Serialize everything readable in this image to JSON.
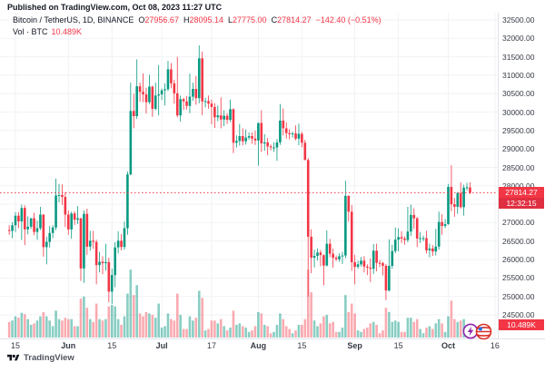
{
  "page": {
    "published": "Published on TradingView.com, Oct 08, 2023 11:27 UTC",
    "brand": "TradingView"
  },
  "legend": {
    "symbol": "Bitcoin / TetherUS, 1D, BINANCE",
    "o_label": "O",
    "o": "27956.67",
    "h_label": "H",
    "h": "28095.14",
    "l_label": "L",
    "l": "27775.00",
    "c_label": "C",
    "c": "27814.27",
    "change": "−142.40 (−0.51%)",
    "volume_label": "Vol · BTC",
    "volume_value": "10.489K"
  },
  "price_axis": {
    "labels": [
      "32500.00",
      "32000.00",
      "31500.00",
      "31000.00",
      "30500.00",
      "30000.00",
      "29500.00",
      "29000.00",
      "28500.00",
      "28000.00",
      "27500.00",
      "27000.00",
      "26500.00",
      "26000.00",
      "25500.00",
      "25000.00",
      "24500.00"
    ],
    "badge_price": "27814.27",
    "badge_countdown": "12:32:15",
    "badge_volume": "10.489K"
  },
  "time_axis": {
    "ticks": [
      {
        "label": "15",
        "i": 2,
        "major": false
      },
      {
        "label": "Jun",
        "i": 19,
        "major": true
      },
      {
        "label": "15",
        "i": 33,
        "major": false
      },
      {
        "label": "Jul",
        "i": 49,
        "major": true
      },
      {
        "label": "17",
        "i": 65,
        "major": false
      },
      {
        "label": "Aug",
        "i": 80,
        "major": true
      },
      {
        "label": "15",
        "i": 94,
        "major": false
      },
      {
        "label": "Sep",
        "i": 111,
        "major": true
      },
      {
        "label": "15",
        "i": 125,
        "major": false
      },
      {
        "label": "Oct",
        "i": 141,
        "major": true
      },
      {
        "label": "16",
        "i": 156,
        "major": false
      }
    ]
  },
  "stickers": [
    "lightning-sticker",
    "striped-ball-sticker"
  ],
  "colors": {
    "up": "#089981",
    "down": "#F23645",
    "vol_up": "rgba(8,153,129,0.48)",
    "vol_down": "rgba(242,54,69,0.42)",
    "accent_red": "#F23645",
    "grid": "#f0f2f6",
    "axis_text": "#363a45"
  },
  "chart_data": {
    "type": "candlestick",
    "title": "Bitcoin / TetherUS, 1D, BINANCE",
    "start_date": "2023-05-13",
    "end_date": "2023-10-08",
    "y_axis": {
      "min": 24500,
      "max": 32500,
      "step": 500,
      "grid": true
    },
    "last_price": 27814.27,
    "last_volume_k": 10.489,
    "volume_unit": "K BTC",
    "candles_ohlcv": [
      [
        26800,
        26930,
        26670,
        26777,
        22
      ],
      [
        26777,
        27010,
        26580,
        26930,
        24
      ],
      [
        26930,
        27290,
        26750,
        27190,
        30
      ],
      [
        27190,
        27290,
        26850,
        27035,
        28
      ],
      [
        27035,
        27490,
        26530,
        27400,
        35
      ],
      [
        27400,
        27470,
        26390,
        26820,
        33
      ],
      [
        26820,
        27170,
        26680,
        26890,
        26
      ],
      [
        26890,
        27130,
        26830,
        27120,
        18
      ],
      [
        27120,
        27270,
        26660,
        26750,
        20
      ],
      [
        26750,
        27060,
        26540,
        26850,
        24
      ],
      [
        26850,
        27430,
        26800,
        27220,
        30
      ],
      [
        27220,
        27230,
        26080,
        26340,
        36
      ],
      [
        26340,
        26620,
        25870,
        26480,
        30
      ],
      [
        26480,
        26910,
        26330,
        26720,
        24
      ],
      [
        26720,
        26930,
        26580,
        26870,
        16
      ],
      [
        26870,
        28200,
        26800,
        27740,
        38
      ],
      [
        27740,
        28050,
        27550,
        27750,
        26
      ],
      [
        27750,
        28040,
        27480,
        27700,
        24
      ],
      [
        27700,
        27830,
        26880,
        27220,
        28
      ],
      [
        27220,
        27330,
        26670,
        26820,
        26
      ],
      [
        26820,
        27300,
        26560,
        27250,
        26
      ],
      [
        27250,
        27310,
        26940,
        27080,
        16
      ],
      [
        27080,
        27450,
        26970,
        27120,
        16
      ],
      [
        27120,
        27130,
        25420,
        25760,
        55
      ],
      [
        25760,
        27330,
        25370,
        27240,
        58
      ],
      [
        27240,
        27380,
        26130,
        26350,
        42
      ],
      [
        26350,
        26780,
        26240,
        26510,
        26
      ],
      [
        26510,
        26780,
        26290,
        26480,
        22
      ],
      [
        26480,
        26540,
        25330,
        25850,
        48
      ],
      [
        25850,
        26210,
        25650,
        25940,
        26
      ],
      [
        25940,
        26090,
        25600,
        25900,
        24
      ],
      [
        25900,
        26430,
        25700,
        25930,
        26
      ],
      [
        25930,
        26050,
        24840,
        25130,
        44
      ],
      [
        25130,
        25750,
        24800,
        25580,
        46
      ],
      [
        25580,
        26470,
        25250,
        26330,
        44
      ],
      [
        26330,
        26770,
        26170,
        26510,
        26
      ],
      [
        26510,
        26690,
        26250,
        26340,
        18
      ],
      [
        26340,
        27030,
        26270,
        26850,
        30
      ],
      [
        26850,
        28390,
        26670,
        28310,
        62
      ],
      [
        28310,
        30800,
        28280,
        30030,
        96
      ],
      [
        30030,
        30500,
        29560,
        29890,
        60
      ],
      [
        29890,
        31430,
        29820,
        30700,
        74
      ],
      [
        30700,
        30800,
        30280,
        30550,
        34
      ],
      [
        30550,
        31050,
        30270,
        30480,
        30
      ],
      [
        30480,
        30660,
        29960,
        30270,
        36
      ],
      [
        30270,
        31010,
        30220,
        30690,
        34
      ],
      [
        30690,
        30720,
        29870,
        30090,
        32
      ],
      [
        30090,
        30800,
        30050,
        30450,
        28
      ],
      [
        30450,
        31280,
        29910,
        30480,
        48
      ],
      [
        30480,
        30640,
        30330,
        30590,
        14
      ],
      [
        30590,
        30780,
        30180,
        30620,
        16
      ],
      [
        30620,
        31390,
        30570,
        31160,
        34
      ],
      [
        31160,
        31330,
        30650,
        30780,
        26
      ],
      [
        30780,
        30880,
        30230,
        30510,
        24
      ],
      [
        30510,
        31500,
        29860,
        29910,
        62
      ],
      [
        29910,
        30450,
        29740,
        30350,
        32
      ],
      [
        30350,
        30390,
        30060,
        30290,
        12
      ],
      [
        30290,
        30440,
        30070,
        30170,
        12
      ],
      [
        30170,
        31040,
        29970,
        30420,
        30
      ],
      [
        30420,
        30800,
        30310,
        30630,
        24
      ],
      [
        30630,
        30980,
        30200,
        30380,
        28
      ],
      [
        30380,
        31810,
        30240,
        31460,
        66
      ],
      [
        31460,
        31640,
        29920,
        30290,
        56
      ],
      [
        30290,
        30390,
        30130,
        30300,
        10
      ],
      [
        30300,
        30450,
        30090,
        30230,
        12
      ],
      [
        30230,
        30340,
        29670,
        30140,
        24
      ],
      [
        30140,
        30240,
        29570,
        29860,
        24
      ],
      [
        29860,
        30180,
        29750,
        29910,
        20
      ],
      [
        29910,
        30400,
        29560,
        29800,
        26
      ],
      [
        29800,
        30050,
        29620,
        29900,
        16
      ],
      [
        29900,
        29970,
        29680,
        29790,
        10
      ],
      [
        29790,
        30340,
        29730,
        30080,
        14
      ],
      [
        30080,
        30100,
        28890,
        29170,
        38
      ],
      [
        29170,
        29370,
        29040,
        29220,
        18
      ],
      [
        29220,
        29680,
        29090,
        29350,
        20
      ],
      [
        29350,
        29560,
        29100,
        29210,
        16
      ],
      [
        29210,
        29530,
        29120,
        29310,
        14
      ],
      [
        29310,
        29450,
        29250,
        29350,
        8
      ],
      [
        29350,
        29450,
        29140,
        29280,
        10
      ],
      [
        29280,
        29500,
        29110,
        29230,
        16
      ],
      [
        29230,
        29710,
        28550,
        29705,
        36
      ],
      [
        29705,
        30050,
        28920,
        29150,
        34
      ],
      [
        29150,
        29400,
        28950,
        29180,
        18
      ],
      [
        29180,
        29300,
        28830,
        29070,
        16
      ],
      [
        29070,
        29120,
        28960,
        29040,
        6
      ],
      [
        29040,
        29180,
        28920,
        29040,
        8
      ],
      [
        29040,
        29270,
        28680,
        29180,
        18
      ],
      [
        29180,
        30220,
        29110,
        29770,
        34
      ],
      [
        29770,
        30100,
        29370,
        29560,
        26
      ],
      [
        29560,
        29720,
        29280,
        29430,
        16
      ],
      [
        29430,
        29540,
        29260,
        29400,
        12
      ],
      [
        29400,
        29470,
        29310,
        29420,
        6
      ],
      [
        29420,
        29640,
        29230,
        29280,
        10
      ],
      [
        29280,
        29690,
        29100,
        29410,
        18
      ],
      [
        29410,
        29460,
        29050,
        29170,
        18
      ],
      [
        29170,
        29250,
        28700,
        28700,
        26
      ],
      [
        28700,
        28750,
        25000,
        26620,
        96
      ],
      [
        26620,
        26820,
        25630,
        26050,
        64
      ],
      [
        26050,
        26270,
        25790,
        26100,
        24
      ],
      [
        26100,
        26300,
        25970,
        26190,
        16
      ],
      [
        26190,
        26260,
        25820,
        26120,
        20
      ],
      [
        26120,
        26140,
        25300,
        25840,
        30
      ],
      [
        25840,
        26790,
        25810,
        26430,
        32
      ],
      [
        26430,
        26560,
        26060,
        26160,
        20
      ],
      [
        26160,
        26300,
        25780,
        26050,
        22
      ],
      [
        26050,
        26110,
        25960,
        26010,
        8
      ],
      [
        26010,
        26170,
        25940,
        26090,
        8
      ],
      [
        26090,
        26210,
        25880,
        26110,
        14
      ],
      [
        26110,
        28140,
        26040,
        27730,
        60
      ],
      [
        27730,
        27740,
        27030,
        27300,
        36
      ],
      [
        27300,
        27480,
        25700,
        25930,
        48
      ],
      [
        25930,
        26130,
        25330,
        25800,
        34
      ],
      [
        25800,
        25970,
        25750,
        25870,
        10
      ],
      [
        25870,
        26070,
        25810,
        25970,
        8
      ],
      [
        25970,
        26090,
        25650,
        25810,
        12
      ],
      [
        25810,
        25870,
        25580,
        25780,
        14
      ],
      [
        25780,
        26030,
        25390,
        25750,
        20
      ],
      [
        25750,
        26420,
        25610,
        26240,
        22
      ],
      [
        26240,
        26430,
        25680,
        25910,
        18
      ],
      [
        25910,
        25990,
        25800,
        25900,
        6
      ],
      [
        25900,
        25940,
        25570,
        25830,
        10
      ],
      [
        25830,
        25880,
        24900,
        25160,
        42
      ],
      [
        25160,
        26550,
        25130,
        25830,
        36
      ],
      [
        25830,
        26400,
        25750,
        26230,
        22
      ],
      [
        26230,
        26870,
        26170,
        26540,
        24
      ],
      [
        26540,
        26850,
        26220,
        26610,
        22
      ],
      [
        26610,
        26770,
        26450,
        26570,
        8
      ],
      [
        26570,
        26630,
        26400,
        26530,
        8
      ],
      [
        26530,
        27430,
        26470,
        26760,
        28
      ],
      [
        26760,
        27490,
        26640,
        27210,
        28
      ],
      [
        27210,
        27390,
        26830,
        27120,
        22
      ],
      [
        27120,
        27150,
        26340,
        26570,
        26
      ],
      [
        26570,
        26750,
        26450,
        26580,
        12
      ],
      [
        26580,
        26650,
        26500,
        26580,
        6
      ],
      [
        26580,
        26780,
        26170,
        26250,
        14
      ],
      [
        26250,
        26430,
        26060,
        26300,
        16
      ],
      [
        26300,
        26390,
        26100,
        26220,
        12
      ],
      [
        26220,
        26830,
        26110,
        26350,
        20
      ],
      [
        26350,
        27300,
        26270,
        27020,
        26
      ],
      [
        27020,
        27230,
        26670,
        26910,
        20
      ],
      [
        26910,
        27100,
        26850,
        26960,
        8
      ],
      [
        26960,
        28050,
        26940,
        27970,
        30
      ],
      [
        27970,
        28560,
        27310,
        27500,
        52
      ],
      [
        27500,
        27670,
        27160,
        27430,
        26
      ],
      [
        27430,
        27830,
        27240,
        27800,
        22
      ],
      [
        27800,
        28090,
        27380,
        27420,
        24
      ],
      [
        27420,
        28030,
        27190,
        27950,
        26
      ],
      [
        27950,
        28080,
        27880,
        27960,
        10
      ],
      [
        27956.67,
        28095.14,
        27775,
        27814.27,
        10.489
      ]
    ]
  }
}
